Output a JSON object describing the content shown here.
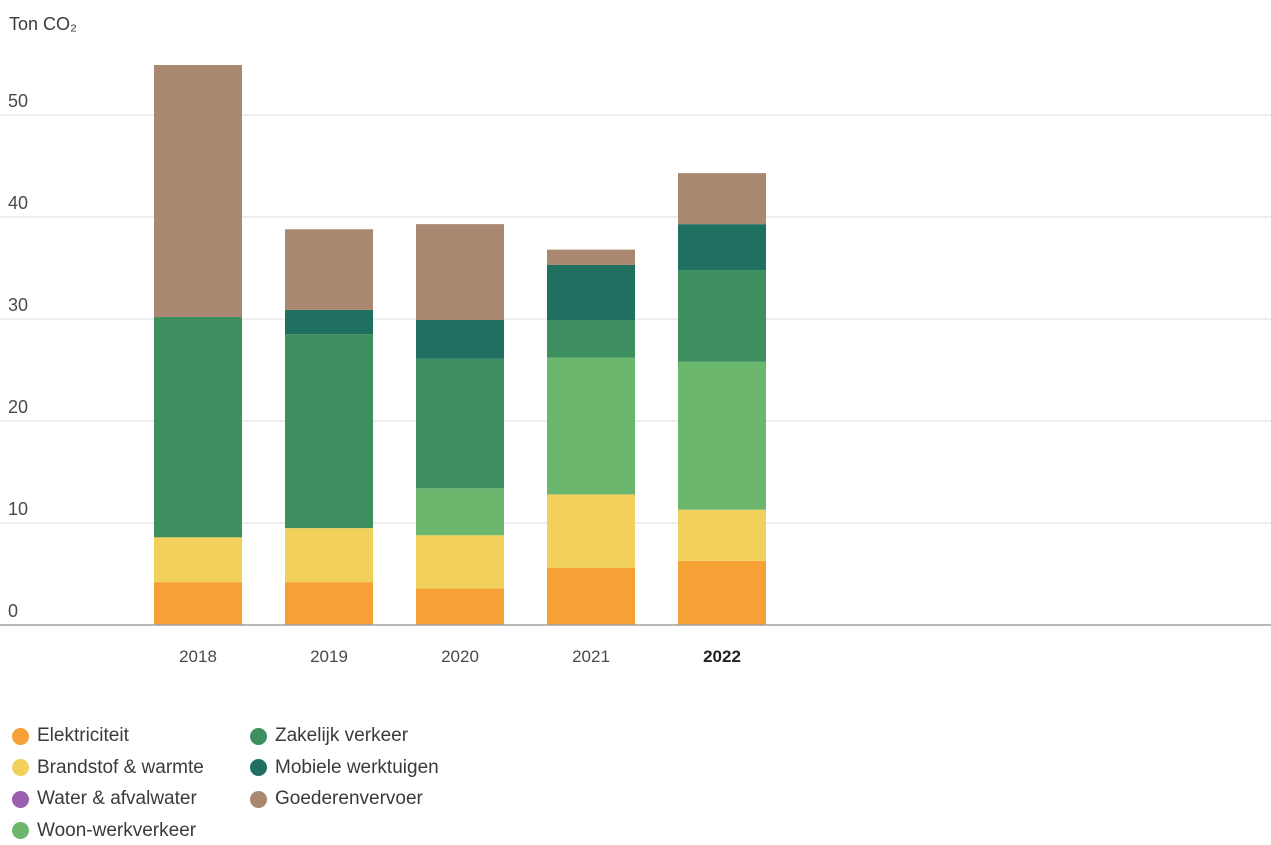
{
  "chart_data": {
    "type": "bar",
    "stacked": true,
    "ylabel": "Ton CO₂",
    "ylim": [
      0,
      55
    ],
    "yticks": [
      0,
      10,
      20,
      30,
      40,
      50
    ],
    "grid": true,
    "legend_position": "bottom-left",
    "categories": [
      "2018",
      "2019",
      "2020",
      "2021",
      "2022"
    ],
    "highlight_category": "2022",
    "series": [
      {
        "name": "Elektriciteit",
        "color": "#f6a136",
        "values": [
          4.2,
          4.2,
          3.6,
          5.6,
          6.3
        ]
      },
      {
        "name": "Brandstof & warmte",
        "color": "#f1d15c",
        "values": [
          4.4,
          5.3,
          5.2,
          7.2,
          5.0
        ]
      },
      {
        "name": "Water & afvalwater",
        "color": "#9b5fb0",
        "values": [
          0,
          0,
          0,
          0,
          0
        ]
      },
      {
        "name": "Woon-werkverkeer",
        "color": "#6cb76e",
        "values": [
          0,
          0,
          4.6,
          13.4,
          14.5
        ]
      },
      {
        "name": "Zakelijk verkeer",
        "color": "#3e8f5f",
        "values": [
          21.6,
          19.0,
          12.7,
          3.7,
          9.0
        ]
      },
      {
        "name": "Mobiele werktuigen",
        "color": "#1f7060",
        "values": [
          0,
          2.4,
          3.8,
          5.4,
          4.5
        ]
      },
      {
        "name": "Goederenvervoer",
        "color": "#a98770",
        "values": [
          24.7,
          7.9,
          9.4,
          1.5,
          5.0
        ]
      }
    ]
  }
}
